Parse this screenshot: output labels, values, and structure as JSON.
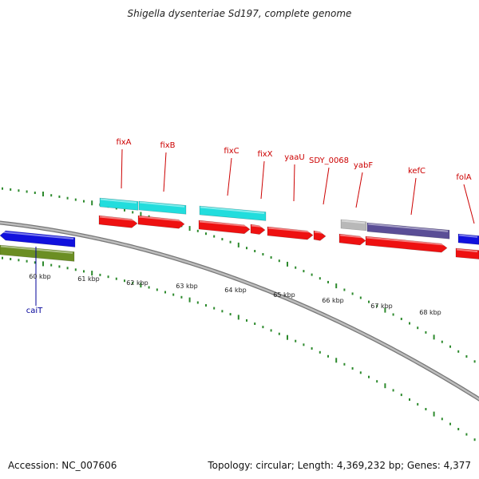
{
  "title": "Shigella dysenteriae Sd197, complete genome",
  "footer": {
    "accession": "Accession: NC_007606",
    "info": "Topology: circular; Length: 4,369,232 bp; Genes: 4,377"
  },
  "colors": {
    "backbone": "#9a9a9a",
    "tick": "#2d8a2d",
    "gene_red": "#ee1111",
    "gene_cyan": "#22dddd",
    "gene_blue": "#1111dd",
    "gene_olive": "#6b8e23",
    "gene_gray": "#b8b8b8",
    "gene_slate": "#5a4e96",
    "label_red": "#cc0000",
    "label_blue": "#000099"
  },
  "scale_labels": [
    "60 kbp",
    "61 kbp",
    "62 kbp",
    "63 kbp",
    "64 kbp",
    "65 kbp",
    "66 kbp",
    "67 kbp",
    "68 kbp"
  ],
  "gene_labels": [
    {
      "name": "fixA",
      "color": "red"
    },
    {
      "name": "fixB",
      "color": "red"
    },
    {
      "name": "fixC",
      "color": "red"
    },
    {
      "name": "fixX",
      "color": "red"
    },
    {
      "name": "yaaU",
      "color": "red"
    },
    {
      "name": "SDY_0068",
      "color": "red"
    },
    {
      "name": "yabF",
      "color": "red"
    },
    {
      "name": "kefC",
      "color": "red"
    },
    {
      "name": "folA",
      "color": "red"
    },
    {
      "name": "caiT",
      "color": "blue"
    }
  ]
}
